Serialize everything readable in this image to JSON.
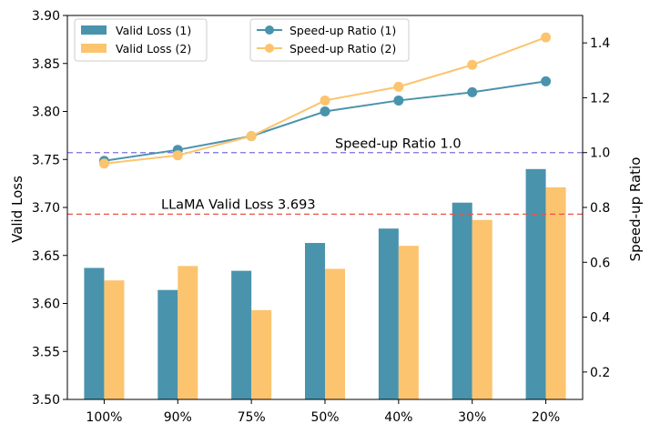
{
  "chart_data": {
    "type": "bar+line",
    "categories": [
      "100%",
      "90%",
      "75%",
      "50%",
      "40%",
      "30%",
      "20%"
    ],
    "bar_series": [
      {
        "name": "Valid Loss (1)",
        "color": "#4a93ac",
        "values": [
          3.637,
          3.614,
          3.634,
          3.663,
          3.678,
          3.705,
          3.74
        ]
      },
      {
        "name": "Valid Loss (2)",
        "color": "#fcc46e",
        "values": [
          3.624,
          3.639,
          3.593,
          3.636,
          3.66,
          3.687,
          3.721
        ]
      }
    ],
    "line_series": [
      {
        "name": "Speed-up Ratio (1)",
        "color": "#4a93ac",
        "values": [
          0.97,
          1.01,
          1.06,
          1.15,
          1.19,
          1.22,
          1.26
        ]
      },
      {
        "name": "Speed-up Ratio (2)",
        "color": "#fcc46e",
        "values": [
          0.96,
          0.99,
          1.06,
          1.19,
          1.24,
          1.32,
          1.42
        ]
      }
    ],
    "ylabel_left": "Valid Loss",
    "ylabel_right": "Speed-up Ratio",
    "ylim_left": [
      3.5,
      3.9
    ],
    "ylim_right": [
      0.1,
      1.5
    ],
    "yticks_left": [
      "3.50",
      "3.55",
      "3.60",
      "3.65",
      "3.70",
      "3.75",
      "3.80",
      "3.85",
      "3.90"
    ],
    "yticks_right": [
      "0.2",
      "0.4",
      "0.6",
      "0.8",
      "1.0",
      "1.2",
      "1.4"
    ],
    "reference_lines": [
      {
        "label": "Speed-up Ratio 1.0",
        "axis": "right",
        "value": 1.0,
        "color": "#7b6fe0"
      },
      {
        "label": "LLaMA Valid Loss 3.693",
        "axis": "left",
        "value": 3.693,
        "color": "#e8534a"
      }
    ]
  }
}
